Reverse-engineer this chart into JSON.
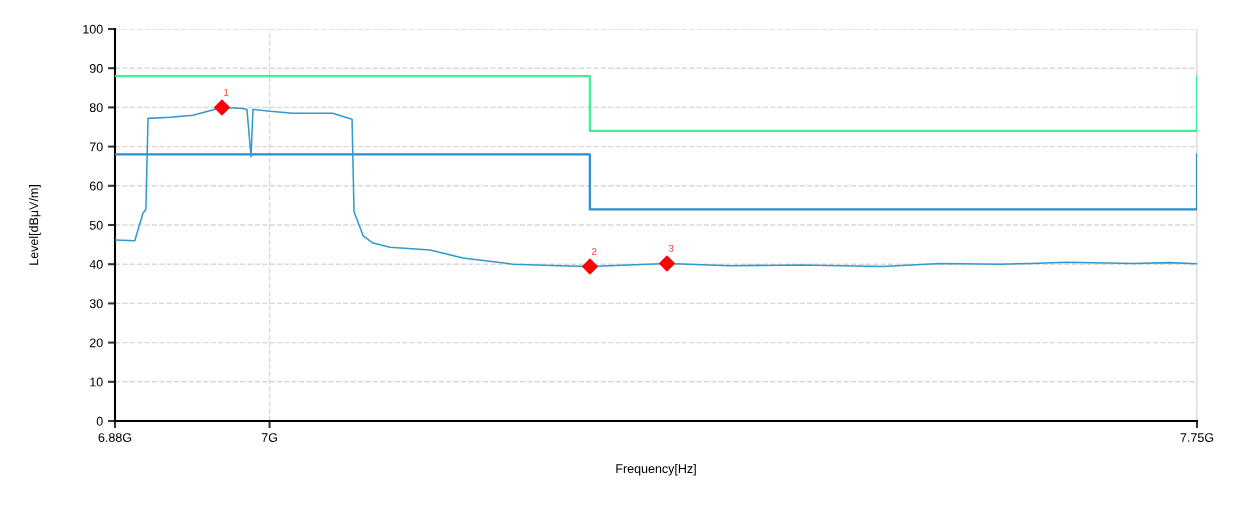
{
  "chart_data": {
    "type": "line",
    "xlabel": "Frequency[Hz]",
    "ylabel": "Level[dBμV/m]",
    "xlim": [
      6.875,
      7.75
    ],
    "xticks": [
      {
        "value": 6.875,
        "label": "6.88G"
      },
      {
        "value": 7,
        "label": "7G"
      },
      {
        "value": 7.75,
        "label": "7.75G"
      }
    ],
    "ylim": [
      0,
      100
    ],
    "yticks": [
      0,
      10,
      20,
      30,
      40,
      50,
      60,
      70,
      80,
      90,
      100
    ],
    "grid": true,
    "legend": false,
    "series": [
      {
        "type": "step",
        "color": "#3ff092",
        "x": [
          6.875,
          7.259,
          7.75,
          7.75
        ],
        "values": [
          88,
          74,
          74,
          88
        ]
      },
      {
        "type": "step",
        "color": "#2b8fcf",
        "x": [
          6.875,
          7.259,
          7.75,
          7.75
        ],
        "values": [
          68,
          54,
          54,
          68
        ]
      },
      {
        "color": "#3399cc",
        "marker": "none",
        "x": [
          6.875,
          6.891,
          6.8976,
          6.9,
          6.9017,
          6.9195,
          6.938,
          6.9615,
          6.9761,
          6.9817,
          6.985,
          6.9866,
          7.0003,
          7.019,
          7.051,
          7.0667,
          7.0683,
          7.0756,
          7.0836,
          7.0974,
          7.1297,
          7.1564,
          7.1969,
          7.2349,
          7.2591,
          7.3214,
          7.3724,
          7.429,
          7.4961,
          7.5422,
          7.5907,
          7.615,
          7.6449,
          7.6983,
          7.7282,
          7.75
        ],
        "values": [
          46.2,
          46,
          53,
          54,
          77.2,
          77.5,
          78,
          80,
          79.8,
          79.5,
          67.4,
          79.5,
          79,
          78.5,
          78.5,
          77,
          53.4,
          47.3,
          45.4,
          44.3,
          43.6,
          41.6,
          40,
          39.6,
          39.4,
          40.2,
          39.6,
          39.8,
          39.4,
          40.2,
          40,
          40.2,
          40.5,
          40.2,
          40.4,
          40.1
        ]
      },
      {
        "type": "scatter",
        "color": "#ff0000",
        "marker": "diamond",
        "x": [
          6.9615,
          7.2591,
          7.3214
        ],
        "values": [
          80,
          39.4,
          40.2
        ]
      }
    ],
    "annotations": [
      {
        "text": "1",
        "x": 6.9615,
        "y": 80
      },
      {
        "text": "2",
        "x": 7.2591,
        "y": 39.4
      },
      {
        "text": "3",
        "x": 7.3214,
        "y": 40.2
      }
    ]
  }
}
